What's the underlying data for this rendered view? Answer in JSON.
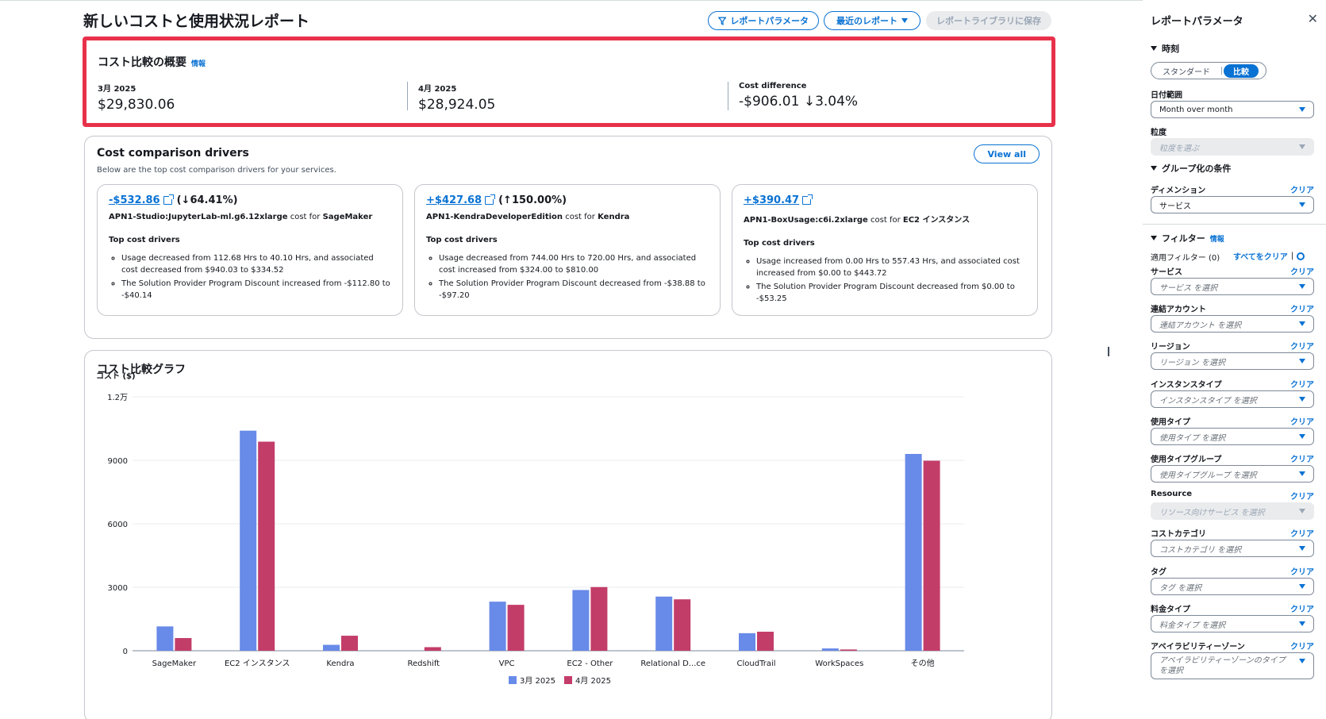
{
  "header": {
    "title": "新しいコストと使用状況レポート",
    "btn_params": "レポートパラメータ",
    "btn_recent": "最近のレポート",
    "btn_save": "レポートライブラリに保存"
  },
  "summary": {
    "title": "コスト比較の概要",
    "info": "情報",
    "m1_label": "3月 2025",
    "m1_value": "$29,830.06",
    "m2_label": "4月 2025",
    "m2_value": "$28,924.05",
    "m3_label": "Cost difference",
    "m3_value": "-$906.01 ↓3.04%"
  },
  "drivers": {
    "title": "Cost comparison drivers",
    "subtitle": "Below are the top cost comparison drivers for your services.",
    "view_all": "View all",
    "top_label": "Top cost drivers",
    "cards": [
      {
        "amount": "-$532.86",
        "pct": "(↓64.41%)",
        "item": "APN1-Studio:JupyterLab-ml.g6.12xlarge",
        "cost_for": "cost for",
        "service": "SageMaker",
        "bullets": [
          "Usage decreased from 112.68 Hrs to 40.10 Hrs, and associated cost decreased from $940.03 to $334.52",
          "The Solution Provider Program Discount increased from -$112.80 to -$40.14"
        ]
      },
      {
        "amount": "+$427.68",
        "pct": "(↑150.00%)",
        "item": "APN1-KendraDeveloperEdition",
        "cost_for": "cost for",
        "service": "Kendra",
        "bullets": [
          "Usage decreased from 744.00 Hrs to 720.00 Hrs, and associated cost increased from $324.00 to $810.00",
          "The Solution Provider Program Discount decreased from -$38.88 to -$97.20"
        ]
      },
      {
        "amount": "+$390.47",
        "pct": "",
        "item": "APN1-BoxUsage:c6i.2xlarge",
        "cost_for": "cost for",
        "service": "EC2 インスタンス",
        "bullets": [
          "Usage increased from 0.00 Hrs to 557.43 Hrs, and associated cost increased from $0.00 to $443.72",
          "The Solution Provider Program Discount decreased from $0.00 to -$53.25"
        ]
      }
    ]
  },
  "chart_section": {
    "title": "コスト比較グラフ"
  },
  "chart_data": {
    "type": "bar",
    "title": "",
    "ylabel": "コスト ($)",
    "xlabel": "",
    "ylim": [
      0,
      12000
    ],
    "yticks": [
      0,
      3000,
      6000,
      9000,
      12000
    ],
    "ytick_labels": [
      "0",
      "3000",
      "6000",
      "9000",
      "1.2万"
    ],
    "grid": true,
    "legend": "bottom",
    "categories": [
      "SageMaker",
      "EC2 インスタンス",
      "Kendra",
      "Redshift",
      "VPC",
      "EC2 - Other",
      "Relational D...ce",
      "CloudTrail",
      "WorkSpaces",
      "その他"
    ],
    "series": [
      {
        "name": "3月 2025",
        "color": "#688ae8",
        "values": [
          1150,
          10400,
          280,
          0,
          2320,
          2870,
          2560,
          830,
          110,
          9300
        ]
      },
      {
        "name": "4月 2025",
        "color": "#c33d69",
        "values": [
          600,
          9880,
          710,
          170,
          2170,
          3010,
          2430,
          900,
          60,
          8980
        ]
      }
    ]
  },
  "side": {
    "title": "レポートパラメータ",
    "time": "時刻",
    "seg_standard": "スタンダード",
    "seg_compare": "比較",
    "date_range_label": "日付範囲",
    "date_range_value": "Month over month",
    "granularity_label": "粒度",
    "granularity_ph": "粒度を選ぶ",
    "group_by": "グループ化の条件",
    "dimension_label": "ディメンション",
    "dimension_value": "サービス",
    "clear": "クリア",
    "filters": "フィルター",
    "info": "情報",
    "applied": "適用フィルター (0)",
    "clear_all": "すべてをクリア",
    "filter_fields": [
      {
        "label": "サービス",
        "ph": "サービス を選択"
      },
      {
        "label": "連結アカウント",
        "ph": "連結アカウント を選択"
      },
      {
        "label": "リージョン",
        "ph": "リージョン を選択"
      },
      {
        "label": "インスタンスタイプ",
        "ph": "インスタンスタイプ を選択"
      },
      {
        "label": "使用タイプ",
        "ph": "使用タイプ を選択"
      },
      {
        "label": "使用タイプグループ",
        "ph": "使用タイプグループ を選択"
      },
      {
        "label": "Resource",
        "ph": "リソース向けサービス を選択"
      },
      {
        "label": "コストカテゴリ",
        "ph": "コストカテゴリ を選択"
      },
      {
        "label": "タグ",
        "ph": "タグ を選択"
      },
      {
        "label": "料金タイプ",
        "ph": "料金タイプ を選択"
      },
      {
        "label": "アベイラビリティーゾーン",
        "ph": "アベイラビリティーゾーンのタイプ を選択"
      }
    ]
  }
}
